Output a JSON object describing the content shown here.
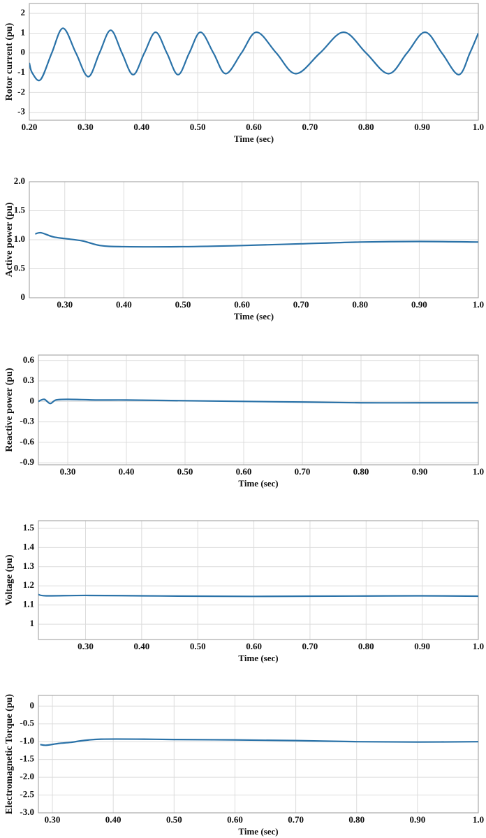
{
  "chart_data": [
    {
      "type": "line",
      "ylabel": "Rotor current (pu)",
      "xlabel": "Time (sec)",
      "grid": true,
      "xlim": [
        0.2,
        1.0
      ],
      "ylim": [
        -3.4,
        2.5
      ],
      "xticks": [
        {
          "value": 0.2,
          "label": "0.20"
        },
        {
          "value": 0.3,
          "label": "0.30"
        },
        {
          "value": 0.4,
          "label": "0.40"
        },
        {
          "value": 0.5,
          "label": "0.50"
        },
        {
          "value": 0.6,
          "label": "0.60"
        },
        {
          "value": 0.7,
          "label": "0.70"
        },
        {
          "value": 0.8,
          "label": "0.80"
        },
        {
          "value": 0.9,
          "label": "0.90"
        },
        {
          "value": 1.0,
          "label": "1.0"
        }
      ],
      "yticks": [
        2,
        1,
        0,
        -1,
        -2,
        -3
      ],
      "x": [
        0.2,
        0.205,
        0.22,
        0.24,
        0.26,
        0.283,
        0.305,
        0.325,
        0.345,
        0.365,
        0.385,
        0.405,
        0.425,
        0.445,
        0.465,
        0.485,
        0.505,
        0.528,
        0.55,
        0.578,
        0.605,
        0.64,
        0.675,
        0.718,
        0.76,
        0.8,
        0.84,
        0.873,
        0.905,
        0.935,
        0.965,
        0.985,
        1.0
      ],
      "series": [
        {
          "color": "#2a72a8",
          "values": [
            -0.5,
            -1.0,
            -1.35,
            0,
            1.25,
            0,
            -1.2,
            0,
            1.15,
            0,
            -1.1,
            0,
            1.05,
            0,
            -1.1,
            0,
            1.05,
            0,
            -1.05,
            0,
            1.05,
            0,
            -1.05,
            0,
            1.05,
            0,
            -1.05,
            0,
            1.05,
            0,
            -1.1,
            0,
            1.0
          ]
        }
      ]
    },
    {
      "type": "line",
      "ylabel": "Active power (pu)",
      "xlabel": "Time (sec)",
      "grid": true,
      "xlim": [
        0.24,
        1.0
      ],
      "ylim": [
        0,
        2.0
      ],
      "xticks": [
        {
          "value": 0.3,
          "label": "0.30"
        },
        {
          "value": 0.4,
          "label": "0.40"
        },
        {
          "value": 0.5,
          "label": "0.50"
        },
        {
          "value": 0.6,
          "label": "0.60"
        },
        {
          "value": 0.7,
          "label": "0.70"
        },
        {
          "value": 0.8,
          "label": "0.80"
        },
        {
          "value": 0.9,
          "label": "0.90"
        },
        {
          "value": 1.0,
          "label": "1.0"
        }
      ],
      "yticks": [
        0,
        0.5,
        {
          "value": 1.0,
          "label": "1.0"
        },
        1.5,
        {
          "value": 2.0,
          "label": "2.0"
        }
      ],
      "x": [
        0.25,
        0.26,
        0.28,
        0.3,
        0.33,
        0.36,
        0.4,
        0.5,
        0.6,
        0.7,
        0.8,
        0.9,
        1.0
      ],
      "series": [
        {
          "color": "#2a72a8",
          "values": [
            1.1,
            1.12,
            1.05,
            1.02,
            0.98,
            0.9,
            0.88,
            0.88,
            0.9,
            0.93,
            0.96,
            0.97,
            0.96
          ]
        }
      ]
    },
    {
      "type": "line",
      "ylabel": "Reactive power (pu)",
      "xlabel": "Time (sec)",
      "grid": true,
      "xlim": [
        0.25,
        1.0
      ],
      "ylim": [
        -0.93,
        0.68
      ],
      "xticks": [
        {
          "value": 0.3,
          "label": "0.30"
        },
        {
          "value": 0.4,
          "label": "0.40"
        },
        {
          "value": 0.5,
          "label": "0.50"
        },
        {
          "value": 0.6,
          "label": "0.60"
        },
        {
          "value": 0.7,
          "label": "0.70"
        },
        {
          "value": 0.8,
          "label": "0.80"
        },
        {
          "value": 0.9,
          "label": "0.90"
        },
        {
          "value": 1.0,
          "label": "1.0"
        }
      ],
      "yticks": [
        0.6,
        0.3,
        0,
        -0.3,
        -0.6,
        -0.9
      ],
      "x": [
        0.25,
        0.26,
        0.27,
        0.28,
        0.3,
        0.35,
        0.4,
        0.5,
        0.6,
        0.7,
        0.8,
        0.9,
        1.0
      ],
      "series": [
        {
          "color": "#2a72a8",
          "values": [
            0,
            0.03,
            -0.03,
            0.02,
            0.03,
            0.02,
            0.02,
            0.01,
            0,
            -0.01,
            -0.02,
            -0.02,
            -0.02
          ]
        }
      ]
    },
    {
      "type": "line",
      "ylabel": "Voltage (pu)",
      "xlabel": "Time (sec)",
      "grid": true,
      "xlim": [
        0.216,
        1.0
      ],
      "ylim": [
        0.92,
        1.54
      ],
      "xticks": [
        {
          "value": 0.3,
          "label": "0.30"
        },
        {
          "value": 0.4,
          "label": "0.40"
        },
        {
          "value": 0.5,
          "label": "0.50"
        },
        {
          "value": 0.6,
          "label": "0.60"
        },
        {
          "value": 0.7,
          "label": "0.70"
        },
        {
          "value": 0.8,
          "label": "0.80"
        },
        {
          "value": 0.9,
          "label": "0.90"
        },
        {
          "value": 1.0,
          "label": "1.0"
        }
      ],
      "yticks": [
        1.5,
        1.4,
        1.3,
        1.2,
        1.1,
        1
      ],
      "x": [
        0.216,
        0.23,
        0.3,
        0.4,
        0.5,
        0.6,
        0.7,
        0.8,
        0.9,
        1.0
      ],
      "series": [
        {
          "color": "#2a72a8",
          "values": [
            1.155,
            1.148,
            1.15,
            1.148,
            1.146,
            1.145,
            1.146,
            1.147,
            1.148,
            1.146
          ]
        }
      ]
    },
    {
      "type": "line",
      "ylabel": "Electromagnetic Torque (pu)",
      "xlabel": "Time (sec)",
      "grid": true,
      "xlim": [
        0.277,
        1.0
      ],
      "ylim": [
        -3.0,
        0.3
      ],
      "xticks": [
        {
          "value": 0.3,
          "label": "0.30"
        },
        {
          "value": 0.4,
          "label": "0.40"
        },
        {
          "value": 0.5,
          "label": "0.50"
        },
        {
          "value": 0.6,
          "label": "0.60"
        },
        {
          "value": 0.7,
          "label": "0.70"
        },
        {
          "value": 0.8,
          "label": "0.80"
        },
        {
          "value": 0.9,
          "label": "0.90"
        },
        {
          "value": 1.0,
          "label": "1.0"
        }
      ],
      "yticks": [
        0,
        -0.5,
        {
          "value": -1.0,
          "label": "-1.0"
        },
        -1.5,
        {
          "value": -2.0,
          "label": "-2.0"
        },
        -2.5,
        {
          "value": -3.0,
          "label": "-3.0"
        }
      ],
      "x": [
        0.28,
        0.29,
        0.31,
        0.33,
        0.35,
        0.38,
        0.45,
        0.5,
        0.6,
        0.7,
        0.8,
        0.9,
        1.0
      ],
      "series": [
        {
          "color": "#2a72a8",
          "values": [
            -1.08,
            -1.1,
            -1.05,
            -1.02,
            -0.97,
            -0.93,
            -0.93,
            -0.94,
            -0.95,
            -0.97,
            -1.0,
            -1.01,
            -1.0
          ]
        }
      ]
    }
  ]
}
